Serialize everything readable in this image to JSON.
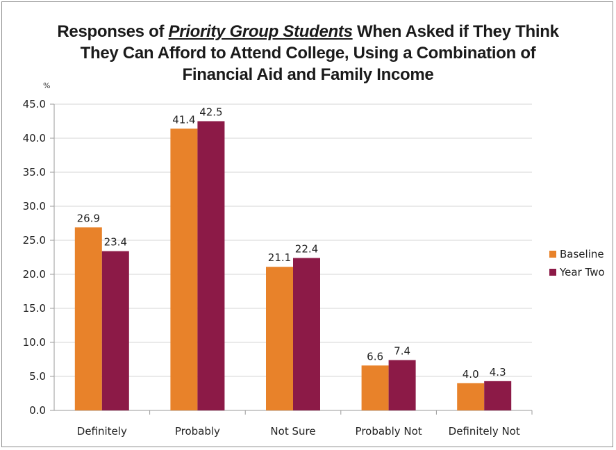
{
  "chart_data": {
    "type": "bar",
    "title_parts": {
      "line1_before": "Responses of ",
      "line1_emphasis": "Priority Group Students",
      "line1_after": " When Asked if They Think",
      "line2": "They Can Afford to Attend College, Using a Combination of",
      "line3": "Financial Aid and Family Income"
    },
    "ylabel": "%",
    "xlabel": "",
    "ylim": [
      0,
      45
    ],
    "ytick_labels": [
      "0.0",
      "5.0",
      "10.0",
      "15.0",
      "20.0",
      "25.0",
      "30.0",
      "35.0",
      "40.0",
      "45.0"
    ],
    "categories": [
      "Definitely",
      "Probably",
      "Not Sure",
      "Probably Not",
      "Definitely Not"
    ],
    "series": [
      {
        "name": "Baseline",
        "color": "#e8822a",
        "values": [
          26.9,
          41.4,
          21.1,
          6.6,
          4.0
        ],
        "labels": [
          "26.9",
          "41.4",
          "21.1",
          "6.6",
          "4.0"
        ]
      },
      {
        "name": "Year Two",
        "color": "#8c1a47",
        "values": [
          23.4,
          42.5,
          22.4,
          7.4,
          4.3
        ],
        "labels": [
          "23.4",
          "42.5",
          "22.4",
          "7.4",
          "4.3"
        ]
      }
    ],
    "grid": true,
    "legend_position": "right"
  }
}
